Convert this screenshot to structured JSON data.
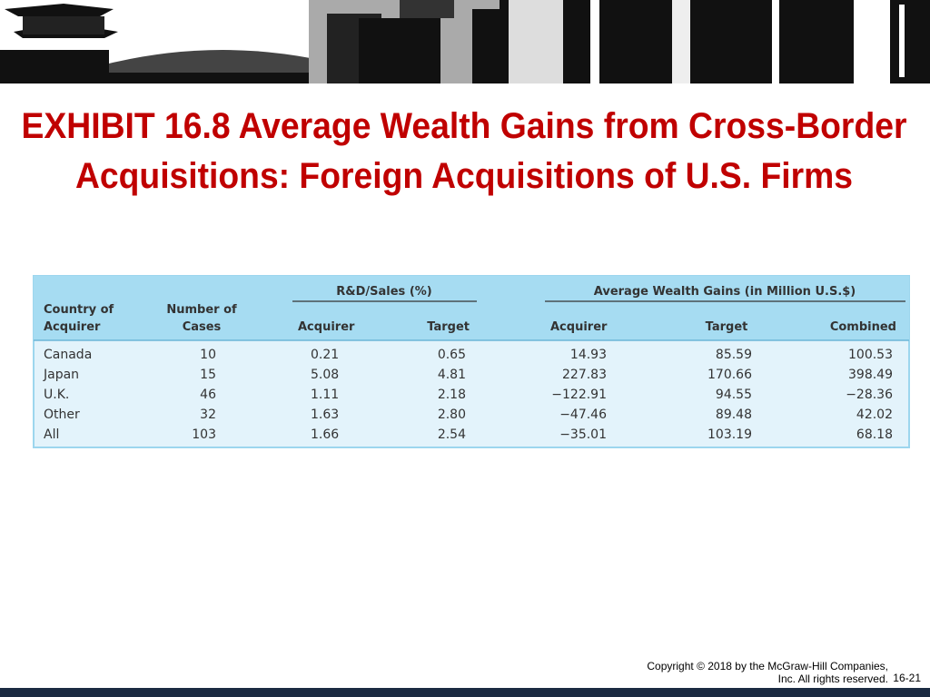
{
  "header": {
    "title_lines": [
      "EXHIBIT 16.8 Average Wealth Gains from Cross-Border",
      "Acquisitions: Foreign Acquisitions of U.S. Firms"
    ]
  },
  "table": {
    "groups": [
      "R&D/Sales (%)",
      "Average Wealth Gains (in Million U.S.$)"
    ],
    "columns": [
      [
        "Country of",
        "Acquirer"
      ],
      [
        "Number of",
        "Cases"
      ],
      [
        "Acquirer"
      ],
      [
        "Target"
      ],
      [
        "Acquirer"
      ],
      [
        "Target"
      ],
      [
        "Combined"
      ]
    ],
    "rows": [
      [
        "Canada",
        "10",
        "0.21",
        "0.65",
        "14.93",
        "85.59",
        "100.53"
      ],
      [
        "Japan",
        "15",
        "5.08",
        "4.81",
        "227.83",
        "170.66",
        "398.49"
      ],
      [
        "U.K.",
        "46",
        "1.11",
        "2.18",
        "−122.91",
        "94.55",
        "−28.36"
      ],
      [
        "Other",
        "32",
        "1.63",
        "2.80",
        "−47.46",
        "89.48",
        "42.02"
      ],
      [
        "All",
        "103",
        "1.66",
        "2.54",
        "−35.01",
        "103.19",
        "68.18"
      ]
    ]
  },
  "footer": {
    "copyright_lines": [
      "Copyright © 2018 by the McGraw-Hill Companies,",
      "Inc. All rights reserved."
    ],
    "page_number": "16-21"
  }
}
